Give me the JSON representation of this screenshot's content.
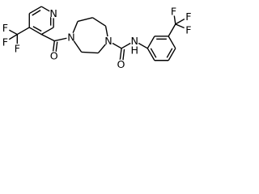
{
  "atoms": [
    "N",
    "F",
    "F",
    "F",
    "O",
    "N",
    "N",
    "N",
    "H",
    "O",
    "F",
    "F",
    "F"
  ]
}
